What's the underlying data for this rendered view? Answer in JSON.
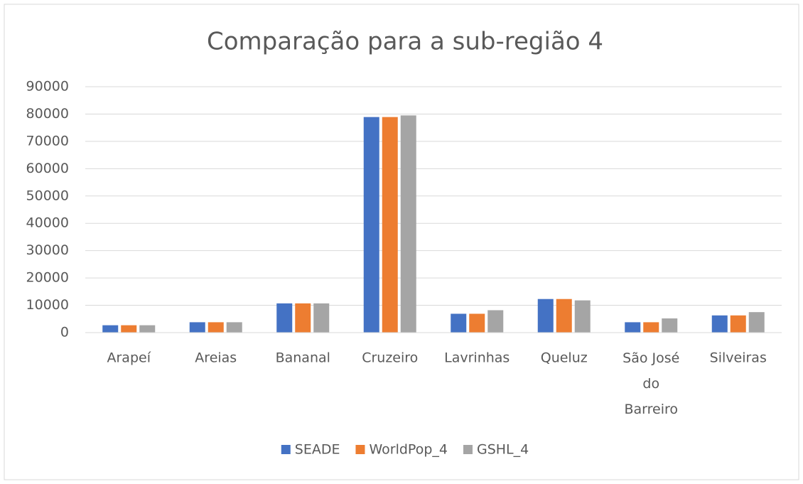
{
  "chart_data": {
    "type": "bar",
    "title": "Comparação para a sub-região 4",
    "categories": [
      "Arapeí",
      "Areias",
      "Bananal",
      "Cruzeiro",
      "Lavrinhas",
      "Queluz",
      "São José do Barreiro",
      "Silveiras"
    ],
    "series": [
      {
        "name": "SEADE",
        "color": "#4472c4",
        "values": [
          2700,
          3800,
          10700,
          78900,
          6900,
          12300,
          3800,
          6300
        ]
      },
      {
        "name": "WorldPop_4",
        "color": "#ed7d31",
        "values": [
          2700,
          3800,
          10700,
          78900,
          6900,
          12300,
          3800,
          6300
        ]
      },
      {
        "name": "GSHL_4",
        "color": "#a5a5a5",
        "values": [
          2700,
          3800,
          10700,
          79500,
          8200,
          11800,
          5200,
          7500
        ]
      }
    ],
    "ylim": [
      0,
      90000
    ],
    "yticks": [
      0,
      10000,
      20000,
      30000,
      40000,
      50000,
      60000,
      70000,
      80000,
      90000
    ],
    "grid": true,
    "legend": "bottom"
  }
}
